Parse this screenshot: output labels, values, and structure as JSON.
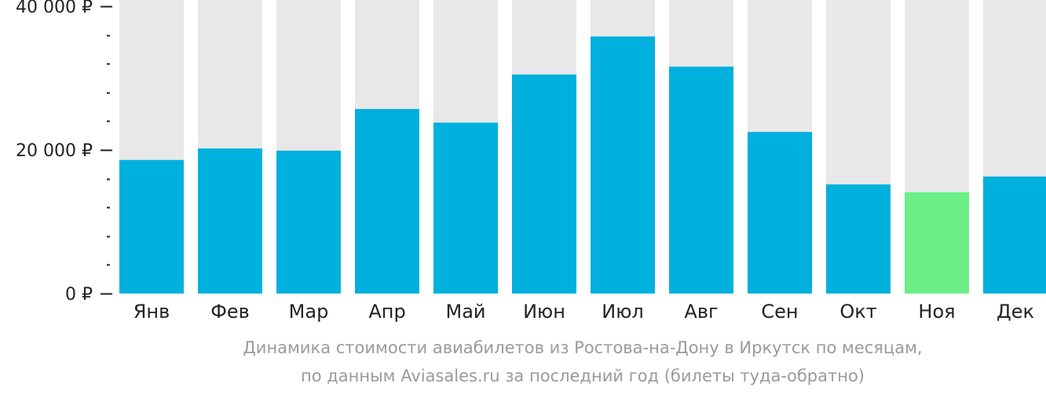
{
  "chart_data": {
    "type": "bar",
    "categories": [
      "Янв",
      "Фев",
      "Мар",
      "Апр",
      "Май",
      "Июн",
      "Июл",
      "Авг",
      "Сен",
      "Окт",
      "Ноя",
      "Дек"
    ],
    "values": [
      18600,
      20200,
      19900,
      25700,
      23800,
      30500,
      35800,
      31600,
      22500,
      15200,
      14100,
      16300
    ],
    "ylim": [
      0,
      40000
    ],
    "y_ticks": [
      0,
      20000,
      40000
    ],
    "y_tick_labels": [
      "0 ₽",
      "20 000 ₽",
      "40 000 ₽"
    ],
    "minor_ticks_between": 4,
    "highlight_index": 10,
    "colors": {
      "bar": "#00b0dd",
      "highlight_bar": "#6cef86",
      "bar_background": "#e8e8e8",
      "axis": "#222222"
    }
  },
  "caption": {
    "line1": "Динамика стоимости авиабилетов из Ростова-на-Дону в Иркутск по месяцам,",
    "line2": "по данным Aviasales.ru за последний год (билеты туда-обратно)"
  }
}
